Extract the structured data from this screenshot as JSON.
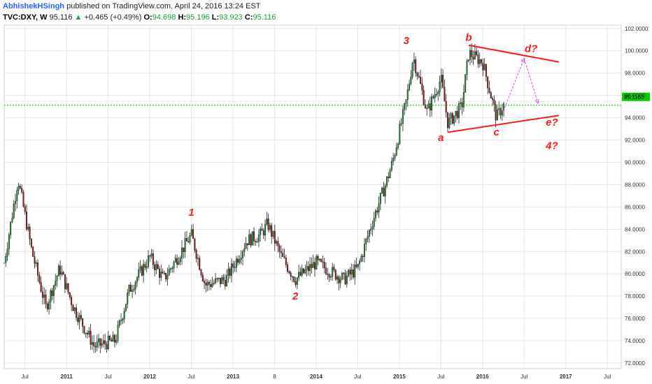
{
  "header": {
    "author": "AbhishekHSingh",
    "published_text": "published on TradingView.com, April 24, 2016 13:24 EST",
    "symbol": "TVC:DXY, W",
    "last": "95.116",
    "change_arrow": "▲",
    "change": "+0.465 (+0.49%)",
    "o_label": "O:",
    "o_value": "94.698",
    "h_label": "H:",
    "h_value": "95.196",
    "l_label": "L:",
    "l_value": "93.923",
    "c_label": "C:",
    "c_value": "95.116"
  },
  "colors": {
    "up_body": "#1a8a35",
    "down_body": "#8b1a1a",
    "wick": "#222222",
    "annotation": "#ff1a1a",
    "current_price_line": "#00c800",
    "projection": "#e040fb",
    "grid": "#e6e6e6"
  },
  "chart_data": {
    "type": "candlestick",
    "title": "",
    "xlabel": "",
    "ylabel": "",
    "ylim": [
      71.5,
      102.3
    ],
    "yticks": [
      "72.0000",
      "74.0000",
      "76.0000",
      "78.0000",
      "80.0000",
      "82.0000",
      "84.0000",
      "86.0000",
      "88.0000",
      "90.0000",
      "92.0000",
      "94.0000",
      "96.0000",
      "98.0000",
      "100.0000",
      "102.0000"
    ],
    "xticks": [
      "Jul",
      "2011",
      "Jul",
      "2012",
      "Jul",
      "2013",
      "8",
      "2014",
      "Jul",
      "2015",
      "Jul",
      "2016",
      "Jul",
      "2017",
      "Jul"
    ],
    "x_range": [
      "2010-04",
      "2017-09"
    ],
    "grid": true,
    "current_price_label": "95.1160",
    "price_path": [
      [
        "2010-04",
        81.0
      ],
      [
        "2010-06",
        88.5
      ],
      [
        "2010-08",
        82.0
      ],
      [
        "2010-10",
        77.0
      ],
      [
        "2010-12",
        80.5
      ],
      [
        "2011-02",
        77.0
      ],
      [
        "2011-05",
        73.5
      ],
      [
        "2011-08",
        74.0
      ],
      [
        "2011-10",
        78.5
      ],
      [
        "2012-01",
        81.5
      ],
      [
        "2012-03",
        79.5
      ],
      [
        "2012-07",
        83.5
      ],
      [
        "2012-09",
        79.0
      ],
      [
        "2012-12",
        79.5
      ],
      [
        "2013-03",
        83.0
      ],
      [
        "2013-05",
        83.5
      ],
      [
        "2013-06",
        84.5
      ],
      [
        "2013-08",
        81.5
      ],
      [
        "2013-10",
        79.5
      ],
      [
        "2014-01",
        81.0
      ],
      [
        "2014-05",
        79.5
      ],
      [
        "2014-07",
        80.5
      ],
      [
        "2014-09",
        84.5
      ],
      [
        "2014-11",
        88.0
      ],
      [
        "2014-12",
        90.0
      ],
      [
        "2015-02",
        95.5
      ],
      [
        "2015-03",
        99.5
      ],
      [
        "2015-05",
        94.5
      ],
      [
        "2015-07",
        97.5
      ],
      [
        "2015-08",
        93.5
      ],
      [
        "2015-10",
        95.0
      ],
      [
        "2015-11",
        99.8
      ],
      [
        "2016-01",
        99.0
      ],
      [
        "2016-03",
        94.0
      ],
      [
        "2016-04",
        95.1
      ]
    ],
    "annotations": {
      "wave_labels": [
        {
          "text": "1",
          "x": "2012-07",
          "y": 85.2
        },
        {
          "text": "2",
          "x": "2013-10",
          "y": 77.7
        },
        {
          "text": "3",
          "x": "2015-02",
          "y": 100.6
        },
        {
          "text": "a",
          "x": "2015-07",
          "y": 91.9
        },
        {
          "text": "b",
          "x": "2015-11",
          "y": 100.9
        },
        {
          "text": "c",
          "x": "2016-03",
          "y": 92.4
        },
        {
          "text": "d?",
          "x": "2016-08",
          "y": 99.9
        },
        {
          "text": "e?",
          "x": "2016-11",
          "y": 93.3
        },
        {
          "text": "4?",
          "x": "2016-11",
          "y": 91.2
        }
      ],
      "trend_lines": [
        {
          "from": [
            "2015-08",
            92.7
          ],
          "to": [
            "2016-12",
            94.2
          ]
        },
        {
          "from": [
            "2015-11",
            100.5
          ],
          "to": [
            "2016-12",
            99.0
          ]
        }
      ],
      "projection_path": [
        [
          "2016-04",
          94.6
        ],
        [
          "2016-07",
          99.3
        ],
        [
          "2016-09",
          95.3
        ]
      ]
    }
  }
}
